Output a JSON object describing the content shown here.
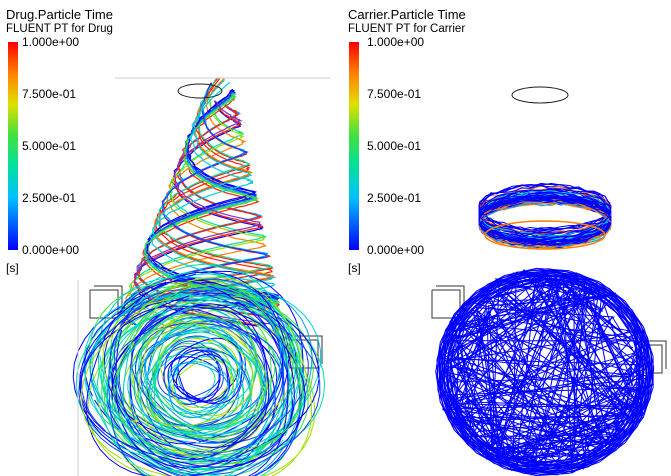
{
  "panels": [
    {
      "title": "Drug.Particle Time",
      "subtitle": "FLUENT PT for Drug",
      "legend_labels": [
        "1.000e+00",
        "7.500e-01",
        "5.000e-01",
        "2.500e-01",
        "0.000e+00"
      ],
      "unit": "[s]"
    },
    {
      "title": "Carrier.Particle Time",
      "subtitle": "FLUENT PT for Carrier",
      "legend_labels": [
        "1.000e+00",
        "7.500e-01",
        "5.000e-01",
        "2.500e-01",
        "0.000e+00"
      ],
      "unit": "[s]"
    }
  ]
}
